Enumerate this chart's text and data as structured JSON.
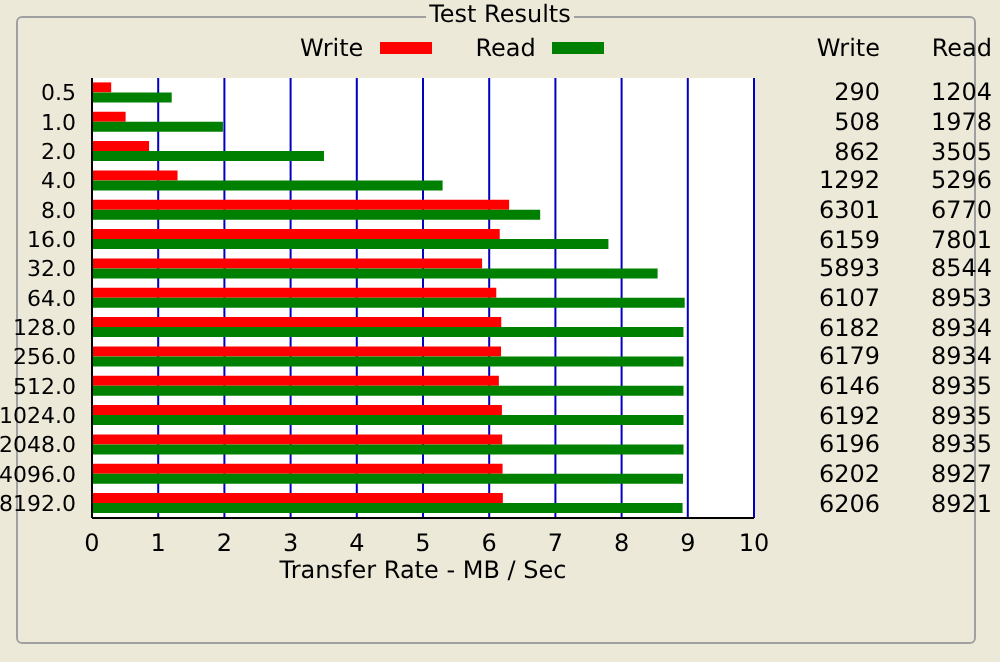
{
  "chart_data": {
    "type": "bar",
    "orientation": "horizontal",
    "title": "Test Results",
    "xlabel": "Transfer Rate - MB / Sec",
    "categories": [
      "0.5",
      "1.0",
      "2.0",
      "4.0",
      "8.0",
      "16.0",
      "32.0",
      "64.0",
      "128.0",
      "256.0",
      "512.0",
      "1024.0",
      "2048.0",
      "4096.0",
      "8192.0"
    ],
    "series": [
      {
        "name": "Write",
        "color": "#ff0000",
        "values": [
          0.29,
          0.508,
          0.862,
          1.292,
          6.301,
          6.159,
          5.893,
          6.107,
          6.182,
          6.179,
          6.146,
          6.192,
          6.196,
          6.202,
          6.206
        ]
      },
      {
        "name": "Read",
        "color": "#008000",
        "values": [
          1.204,
          1.978,
          3.505,
          5.296,
          6.77,
          7.801,
          8.544,
          8.953,
          8.934,
          8.934,
          8.935,
          8.935,
          8.935,
          8.927,
          8.921
        ]
      }
    ],
    "annotations": [
      "Write",
      "Read",
      "290",
      "1204",
      "508",
      "1978",
      "862",
      "3505",
      "1292",
      "5296",
      "6301",
      "6770",
      "6159",
      "7801",
      "5893",
      "8544",
      "6107",
      "8953",
      "6182",
      "8934",
      "6179",
      "8934",
      "6146",
      "8935",
      "6192",
      "8935",
      "6196",
      "8935",
      "6202",
      "8927",
      "6206",
      "8921"
    ],
    "xlim": [
      0,
      10
    ],
    "xticks": [
      0,
      1,
      2,
      3,
      4,
      5,
      6,
      7,
      8,
      9,
      10
    ],
    "grid": "x",
    "legend": "top"
  }
}
